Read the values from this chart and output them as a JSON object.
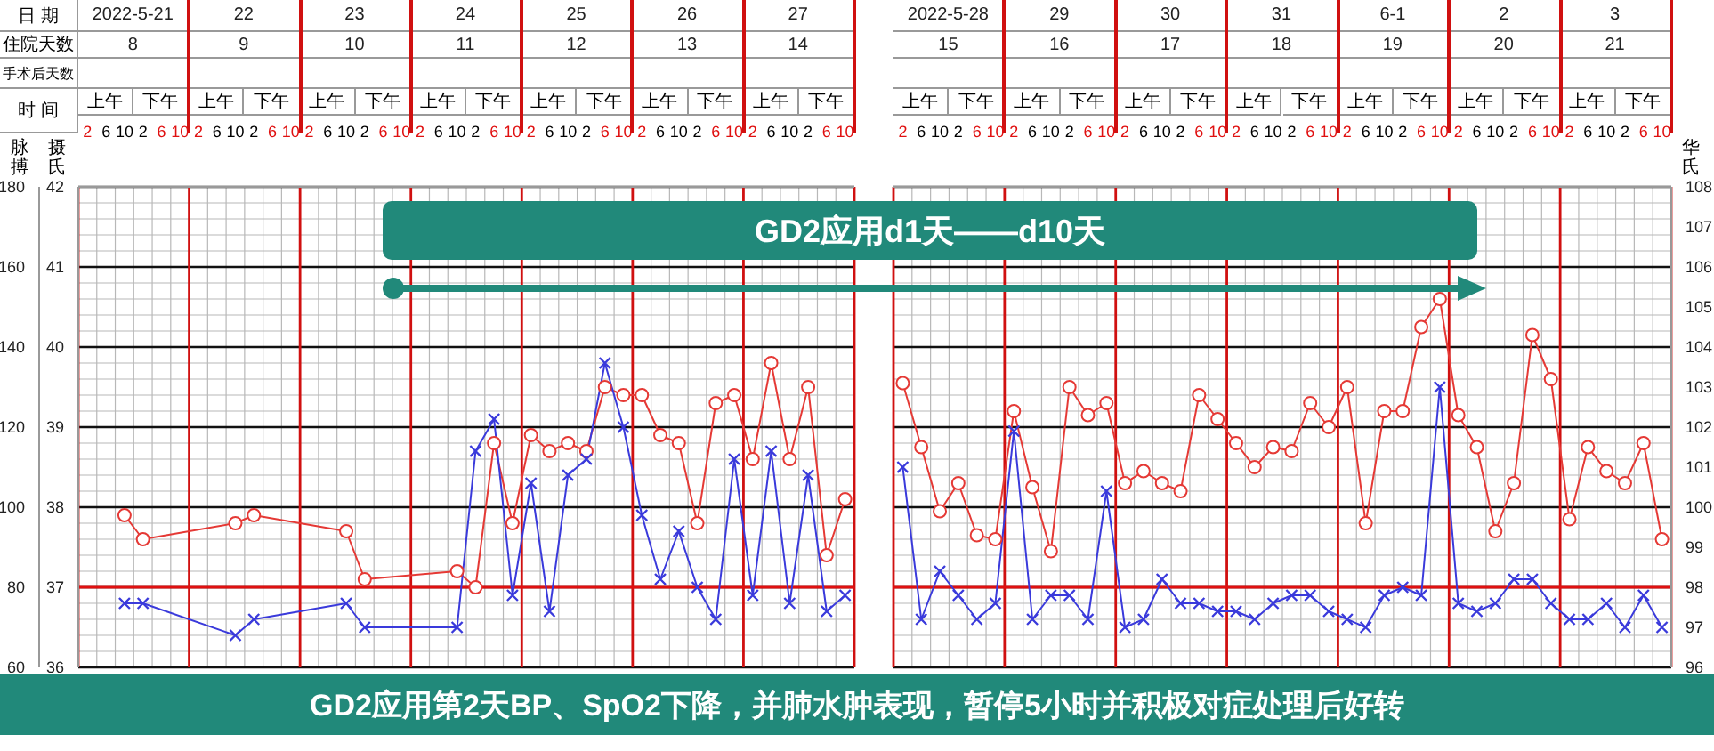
{
  "chart_data": [
    {
      "type": "line",
      "categories": [
        "2",
        "6",
        "10",
        "2",
        "6",
        "10",
        "2",
        "6",
        "10",
        "2",
        "6",
        "10",
        "2",
        "6",
        "10",
        "2",
        "6",
        "10",
        "2",
        "6",
        "10",
        "2",
        "6",
        "10",
        "2",
        "6",
        "10",
        "2",
        "6",
        "10",
        "2",
        "6",
        "10",
        "2",
        "6",
        "10",
        "2",
        "6",
        "10",
        "2",
        "6",
        "10"
      ],
      "annotations": [
        "2022-5-21",
        "22",
        "23",
        "24",
        "25",
        "26",
        "27",
        "8",
        "9",
        "10",
        "11",
        "12",
        "13",
        "14",
        "上午",
        "下午",
        "日  期",
        "住院天数",
        "手术后天数",
        "时  间",
        "GD2应用d1天——d10天",
        "GD2应用第2天BP、SpO2下降，并肺水肿表现，暂停5小时并积极对症处理后好转"
      ],
      "ylabel": "摄氏",
      "y2label": "脉搏",
      "ylim": [
        36,
        42
      ],
      "yticks": [
        36,
        37,
        38,
        39,
        40,
        41,
        42
      ],
      "y2lim": [
        60,
        180
      ],
      "y2ticks": [
        60,
        80,
        100,
        120,
        140,
        160,
        180
      ],
      "grid": true,
      "ref_lines": [
        {
          "axis": "y",
          "value": 37,
          "color": "#e01010"
        }
      ],
      "series": [
        {
          "color": "#e53935",
          "marker": "circle",
          "axis": "y",
          "values": [
            null,
            null,
            37.9,
            37.6,
            null,
            null,
            null,
            null,
            37.8,
            37.9,
            null,
            null,
            null,
            null,
            37.7,
            37.1,
            null,
            null,
            null,
            null,
            37.2,
            37.0,
            38.8,
            37.8,
            38.9,
            38.7,
            38.8,
            38.7,
            39.5,
            39.4,
            39.4,
            38.9,
            38.8,
            37.8,
            39.3,
            39.4,
            38.6,
            39.8,
            38.6,
            39.5,
            37.4,
            38.1
          ]
        },
        {
          "color": "#3a3adb",
          "marker": "cross",
          "axis": "y2",
          "values": [
            null,
            null,
            76,
            76,
            null,
            null,
            null,
            null,
            68,
            72,
            null,
            null,
            null,
            null,
            76,
            70,
            null,
            null,
            null,
            null,
            70,
            114,
            122,
            78,
            106,
            74,
            108,
            112,
            136,
            120,
            98,
            82,
            94,
            80,
            72,
            112,
            78,
            114,
            76,
            108,
            74,
            78
          ]
        }
      ]
    },
    {
      "type": "line",
      "categories": [
        "2",
        "6",
        "10",
        "2",
        "6",
        "10",
        "2",
        "6",
        "10",
        "2",
        "6",
        "10",
        "2",
        "6",
        "10",
        "2",
        "6",
        "10",
        "2",
        "6",
        "10",
        "2",
        "6",
        "10",
        "2",
        "6",
        "10",
        "2",
        "6",
        "10",
        "2",
        "6",
        "10",
        "2",
        "6",
        "10",
        "2",
        "6",
        "10",
        "2",
        "6",
        "10"
      ],
      "annotations": [
        "2022-5-28",
        "29",
        "30",
        "31",
        "6-1",
        "2",
        "3",
        "15",
        "16",
        "17",
        "18",
        "19",
        "20",
        "21",
        "上午",
        "下午"
      ],
      "y2label": "华氏",
      "y2lim": [
        96,
        108
      ],
      "y2ticks": [
        96,
        97,
        98,
        99,
        100,
        101,
        102,
        103,
        104,
        105,
        106,
        107,
        108
      ],
      "grid": true,
      "ref_lines": [
        {
          "axis": "y2",
          "value": 98,
          "color": "#e01010"
        }
      ],
      "series": [
        {
          "color": "#e53935",
          "marker": "circle",
          "axis": "y2",
          "values": [
            103.1,
            101.5,
            99.9,
            100.6,
            99.3,
            99.2,
            102.4,
            100.5,
            98.9,
            103.0,
            102.3,
            102.6,
            100.6,
            100.9,
            100.6,
            100.4,
            102.8,
            102.2,
            101.6,
            101.0,
            101.5,
            101.4,
            102.6,
            102.0,
            103.0,
            99.6,
            102.4,
            102.4,
            104.5,
            105.2,
            102.3,
            101.5,
            99.4,
            100.6,
            104.3,
            103.2,
            99.7,
            101.5,
            100.9,
            100.6,
            101.6,
            99.2
          ]
        },
        {
          "color": "#3a3adb",
          "marker": "cross",
          "axis": "y2",
          "values": [
            101.0,
            97.2,
            98.4,
            97.8,
            97.2,
            97.6,
            101.9,
            97.2,
            97.8,
            97.8,
            97.2,
            100.4,
            97.0,
            97.2,
            98.2,
            97.6,
            97.6,
            97.4,
            97.4,
            97.2,
            97.6,
            97.8,
            97.8,
            97.4,
            97.2,
            97.0,
            97.8,
            98.0,
            97.8,
            103.0,
            97.6,
            97.4,
            97.6,
            98.2,
            98.2,
            97.6,
            97.2,
            97.2,
            97.6,
            97.0,
            97.8,
            97.0
          ]
        }
      ]
    }
  ]
}
